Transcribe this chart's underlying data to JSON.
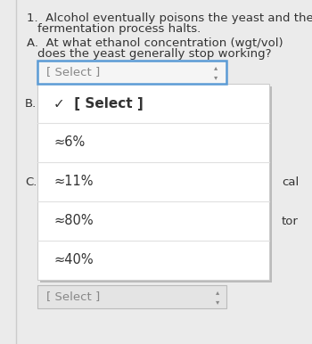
{
  "bg_color": "#ebebeb",
  "dropdown_bg": "#ffffff",
  "dropdown_border": "#cccccc",
  "select_box_border": "#5b9bd5",
  "select_box_bg": "#f5f5f5",
  "text_color_main": "#333333",
  "text_color_select": "#888888",
  "divider_color": "#e0e0e0",
  "font_size_main": 9.5,
  "font_size_select": 9.5,
  "dropdown_items": [
    {
      "text": "✓  [ Select ]",
      "is_header": true
    },
    {
      "text": "≈6%",
      "is_header": false
    },
    {
      "text": "≈11%",
      "is_header": false
    },
    {
      "text": "≈80%",
      "is_header": false
    },
    {
      "text": "≈40%",
      "is_header": false
    }
  ],
  "label_b": "B.",
  "label_c": "C.",
  "text_cal": "cal",
  "text_tor": "tor",
  "select_box_text": "[ Select ]",
  "bottom_select": "[ Select ]"
}
